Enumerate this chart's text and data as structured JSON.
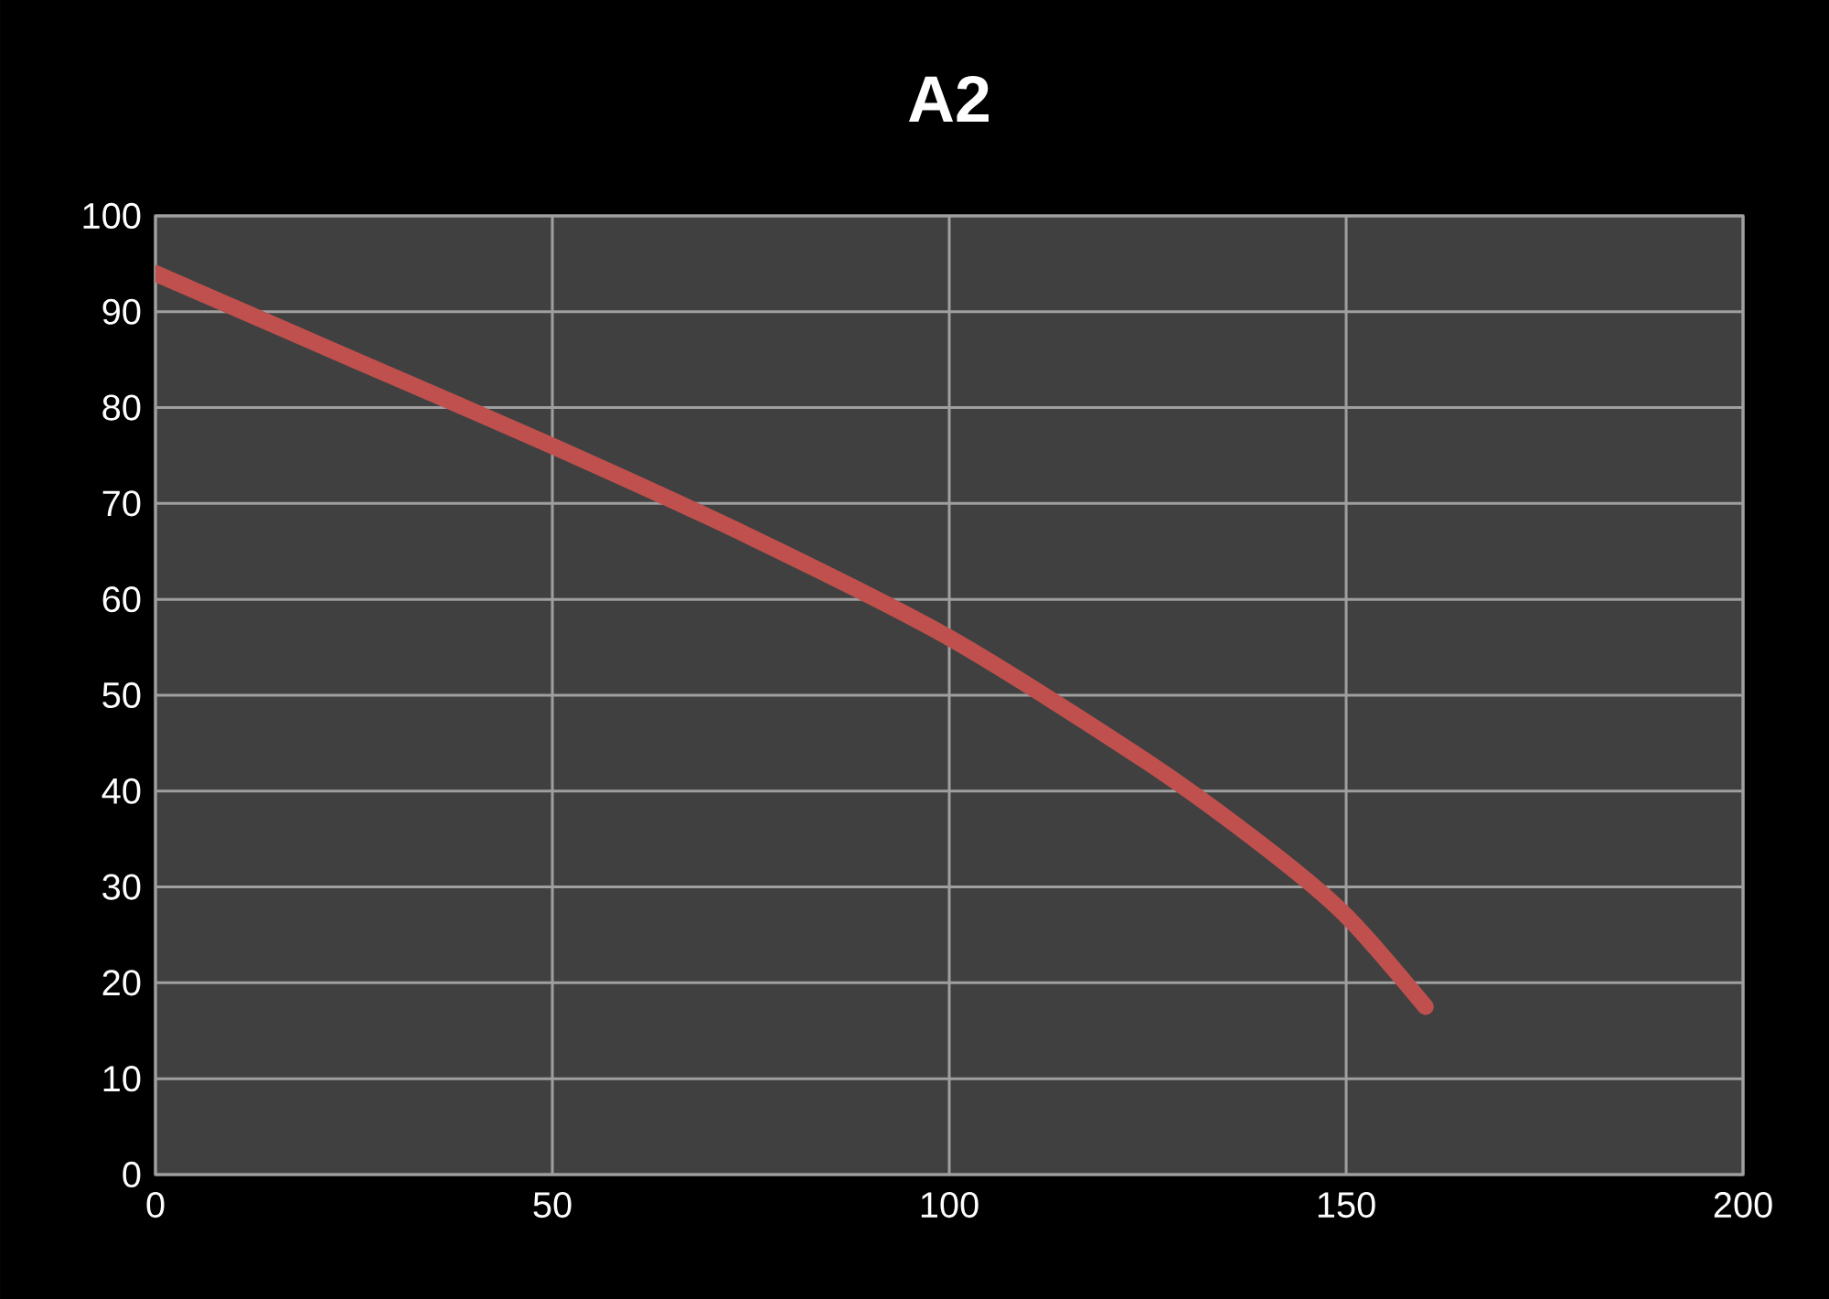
{
  "chart_data": {
    "type": "line",
    "title": "A2",
    "series": [
      {
        "color": "#c0504d",
        "x": [
          0,
          25,
          50,
          75,
          100,
          125,
          140,
          150,
          160
        ],
        "values": [
          94,
          85,
          76,
          66.5,
          56,
          43,
          34,
          27,
          17.5
        ]
      }
    ],
    "xlim": [
      0,
      200
    ],
    "xticks": [
      0,
      50,
      100,
      150,
      200
    ],
    "ylim": [
      0,
      100
    ],
    "yticks": [
      0,
      10,
      20,
      30,
      40,
      50,
      60,
      70,
      80,
      90,
      100
    ],
    "grid": true
  }
}
